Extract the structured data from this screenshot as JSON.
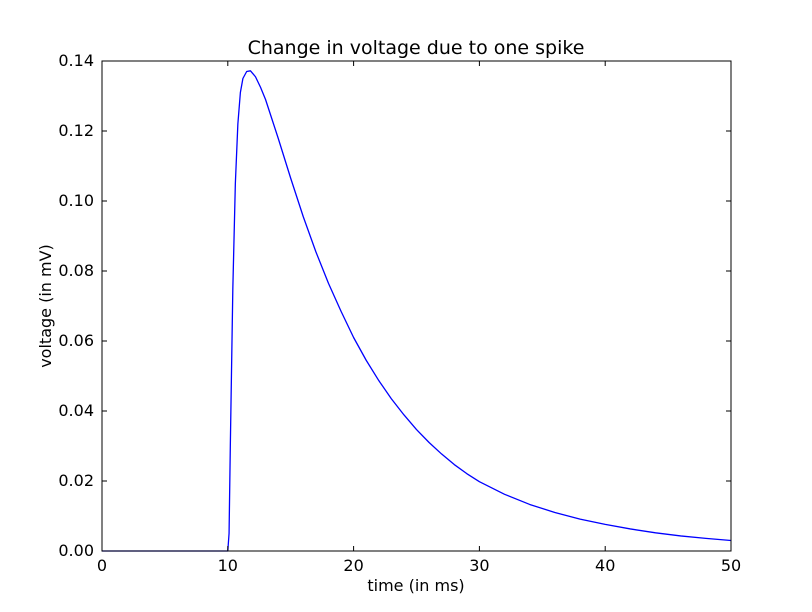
{
  "chart_data": {
    "type": "line",
    "title": "Change in voltage due to one spike",
    "xlabel": "time (in ms)",
    "ylabel": "voltage (in mV)",
    "xlim": [
      0,
      50
    ],
    "ylim": [
      0.0,
      0.14
    ],
    "x_ticks": [
      0,
      10,
      20,
      30,
      40,
      50
    ],
    "x_tick_labels": [
      "0",
      "10",
      "20",
      "30",
      "40",
      "50"
    ],
    "y_ticks": [
      0.0,
      0.02,
      0.04,
      0.06,
      0.08,
      0.1,
      0.12,
      0.14
    ],
    "y_tick_labels": [
      "0.00",
      "0.02",
      "0.04",
      "0.06",
      "0.08",
      "0.10",
      "0.12",
      "0.14"
    ],
    "grid": false,
    "legend": "none",
    "series": [
      {
        "color": "#0000ff",
        "x": [
          0,
          2,
          4,
          6,
          8,
          9,
          9.8,
          10,
          10.1,
          10.2,
          10.4,
          10.6,
          10.8,
          11.0,
          11.2,
          11.5,
          11.8,
          12.2,
          12.6,
          13,
          13.5,
          14,
          15,
          16,
          17,
          18,
          19,
          20,
          21,
          22,
          23,
          24,
          25,
          26,
          27,
          28,
          29,
          30,
          32,
          34,
          36,
          38,
          40,
          42,
          44,
          46,
          48,
          50
        ],
        "y": [
          0,
          0,
          0,
          0,
          0,
          0,
          0,
          0,
          0.005,
          0.03,
          0.075,
          0.105,
          0.122,
          0.131,
          0.135,
          0.137,
          0.1372,
          0.1355,
          0.1325,
          0.129,
          0.1235,
          0.118,
          0.1065,
          0.0955,
          0.0855,
          0.0765,
          0.0685,
          0.061,
          0.0545,
          0.0487,
          0.0435,
          0.0389,
          0.0347,
          0.031,
          0.0277,
          0.0247,
          0.0221,
          0.0198,
          0.0162,
          0.0133,
          0.011,
          0.0091,
          0.0076,
          0.0063,
          0.0052,
          0.0043,
          0.0036,
          0.003
        ]
      }
    ]
  }
}
